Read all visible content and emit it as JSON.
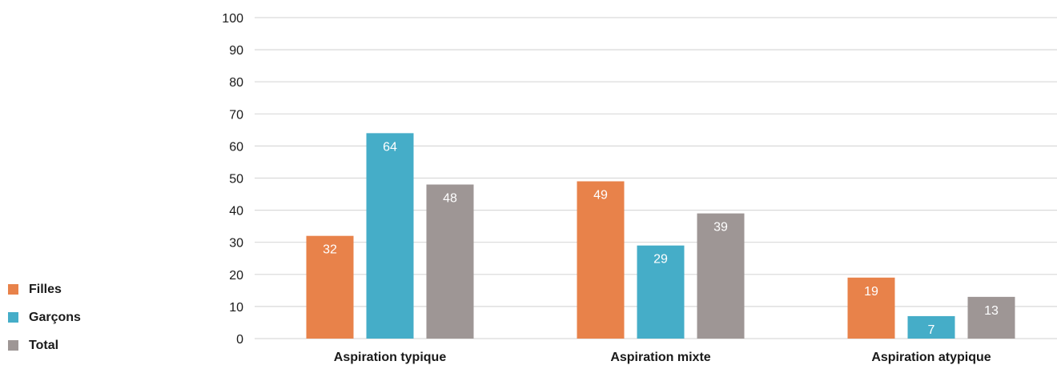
{
  "colors": {
    "filles": "#e8824a",
    "garcons": "#45adc8",
    "total": "#9e9695",
    "grid": "#d9d9d9"
  },
  "legend": [
    {
      "label": "Filles",
      "color_key": "filles"
    },
    {
      "label": "Garçons",
      "color_key": "garcons"
    },
    {
      "label": "Total",
      "color_key": "total"
    }
  ],
  "chart_data": {
    "type": "bar",
    "title": "",
    "xlabel": "",
    "ylabel": "",
    "ylim": [
      0,
      100
    ],
    "yticks": [
      0,
      10,
      20,
      30,
      40,
      50,
      60,
      70,
      80,
      90,
      100
    ],
    "grid": true,
    "legend_position": "left",
    "categories": [
      "Aspiration typique",
      "Aspiration mixte",
      "Aspiration atypique"
    ],
    "series": [
      {
        "name": "Filles",
        "color_key": "filles",
        "values": [
          32,
          49,
          19
        ]
      },
      {
        "name": "Garçons",
        "color_key": "garcons",
        "values": [
          64,
          29,
          7
        ]
      },
      {
        "name": "Total",
        "color_key": "total",
        "values": [
          48,
          39,
          13
        ]
      }
    ]
  }
}
